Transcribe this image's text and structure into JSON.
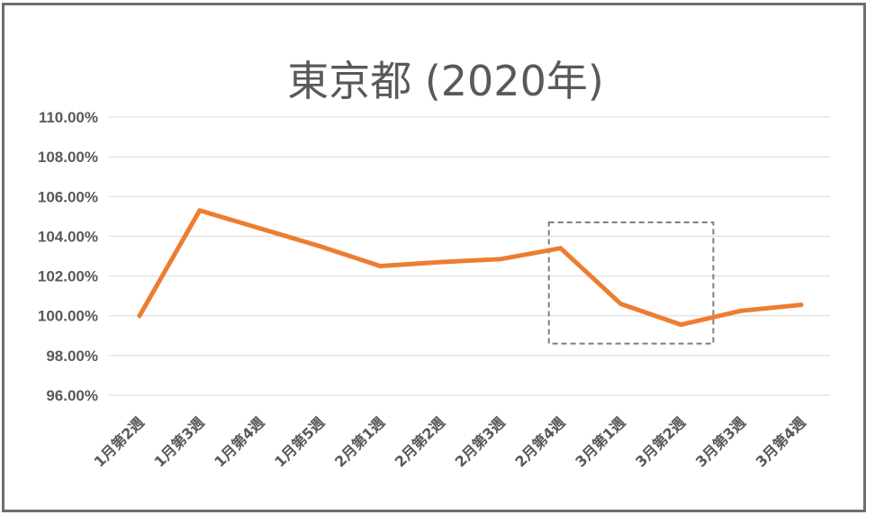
{
  "chart_data": {
    "type": "line",
    "title": "東京都 (2020年)",
    "xlabel": "",
    "ylabel": "",
    "ylim": [
      96,
      110
    ],
    "ytick_step": 2,
    "ytick_labels": [
      "96.00%",
      "98.00%",
      "100.00%",
      "102.00%",
      "104.00%",
      "106.00%",
      "108.00%",
      "110.00%"
    ],
    "categories": [
      "1月第2週",
      "1月第3週",
      "1月第4週",
      "1月第5週",
      "2月第1週",
      "2月第2週",
      "2月第3週",
      "2月第4週",
      "3月第1週",
      "3月第2週",
      "3月第3週",
      "3月第4週"
    ],
    "series": [
      {
        "color": "#ED7D31",
        "values": [
          100.0,
          105.3,
          104.4,
          103.5,
          102.5,
          102.7,
          102.85,
          103.4,
          100.6,
          99.55,
          100.25,
          100.55
        ]
      }
    ],
    "annotations": [
      {
        "type": "dashed-box",
        "from_category": "2月第4週",
        "to_category": "3月第2週",
        "y_range": [
          98.6,
          104.7
        ],
        "color": "#808080"
      }
    ],
    "grid": true,
    "legend": "none"
  }
}
